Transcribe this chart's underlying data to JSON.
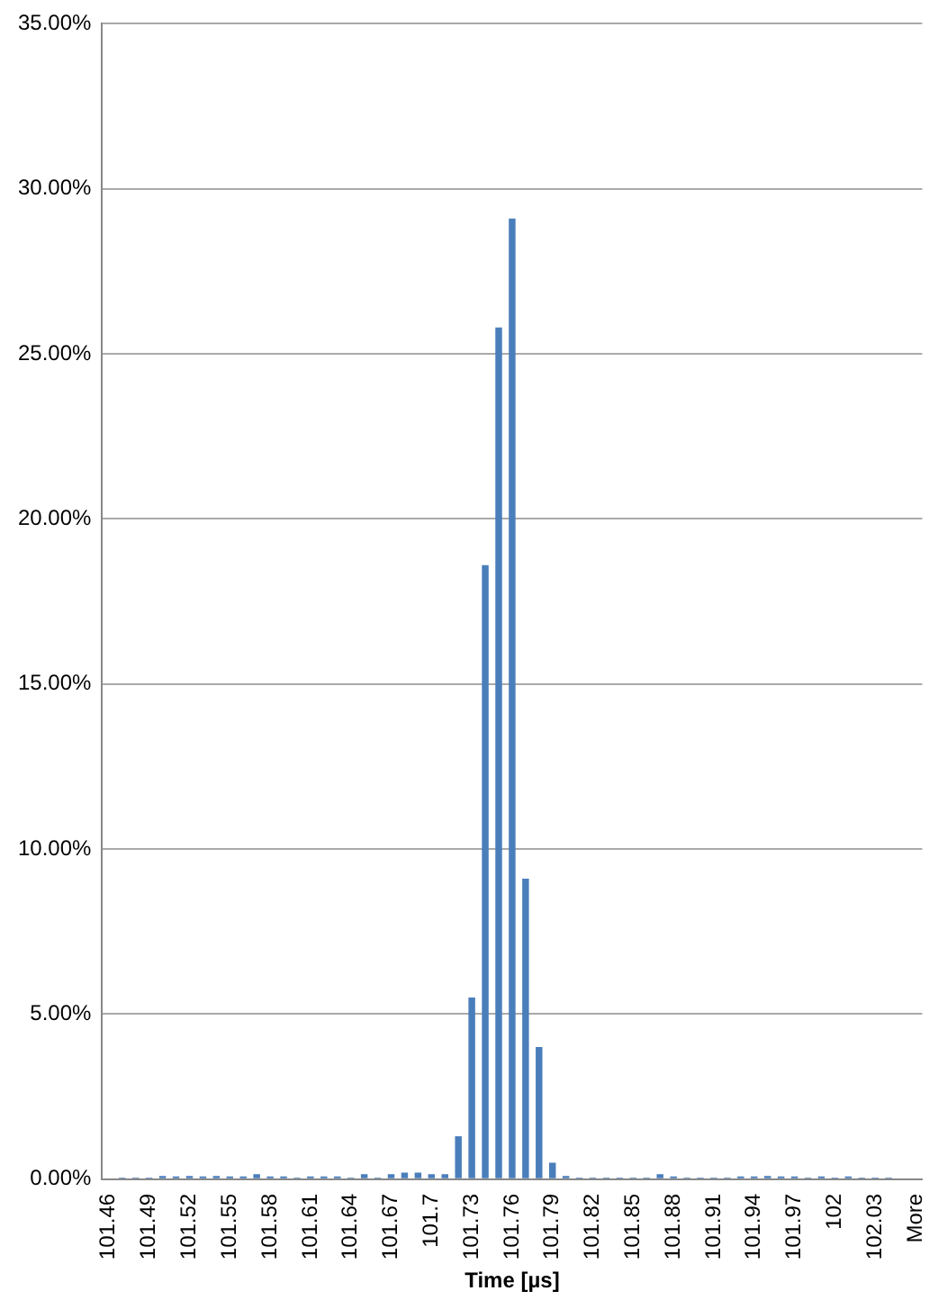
{
  "chart_data": {
    "type": "bar",
    "xlabel": "Time [µs]",
    "categories": [
      "101.46",
      null,
      null,
      "101.49",
      null,
      null,
      "101.52",
      null,
      null,
      "101.55",
      null,
      null,
      "101.58",
      null,
      null,
      "101.61",
      null,
      null,
      "101.64",
      null,
      null,
      "101.67",
      null,
      null,
      "101.7",
      null,
      null,
      "101.73",
      null,
      null,
      "101.76",
      null,
      null,
      "101.79",
      null,
      null,
      "101.82",
      null,
      null,
      "101.85",
      null,
      null,
      "101.88",
      null,
      null,
      "101.91",
      null,
      null,
      "101.94",
      null,
      null,
      "101.97",
      null,
      null,
      "102",
      null,
      null,
      "102.03",
      null,
      null,
      "More"
    ],
    "values": [
      0,
      0.05,
      0.05,
      0.05,
      0.1,
      0.08,
      0.1,
      0.08,
      0.1,
      0.08,
      0.08,
      0.15,
      0.08,
      0.08,
      0.05,
      0.08,
      0.08,
      0.08,
      0.05,
      0.15,
      0.05,
      0.15,
      0.2,
      0.2,
      0.15,
      0.15,
      1.3,
      5.5,
      18.6,
      25.8,
      29.1,
      9.1,
      4.0,
      0.5,
      0.1,
      0.05,
      0.05,
      0.05,
      0.05,
      0.05,
      0.05,
      0.15,
      0.08,
      0.05,
      0.05,
      0.05,
      0.05,
      0.08,
      0.08,
      0.1,
      0.08,
      0.08,
      0.05,
      0.08,
      0.05,
      0.08,
      0.05,
      0.05,
      0.05,
      0,
      0
    ],
    "color": "#4a7ebb",
    "ylim": [
      0,
      35
    ],
    "yticks": [
      {
        "value": 0,
        "label": "0.00%"
      },
      {
        "value": 5,
        "label": "5.00%"
      },
      {
        "value": 10,
        "label": "10.00%"
      },
      {
        "value": 15,
        "label": "15.00%"
      },
      {
        "value": 20,
        "label": "20.00%"
      },
      {
        "value": 25,
        "label": "25.00%"
      },
      {
        "value": 30,
        "label": "30.00%"
      },
      {
        "value": 35,
        "label": "35.00%"
      }
    ],
    "grid": "y",
    "legend": false
  }
}
